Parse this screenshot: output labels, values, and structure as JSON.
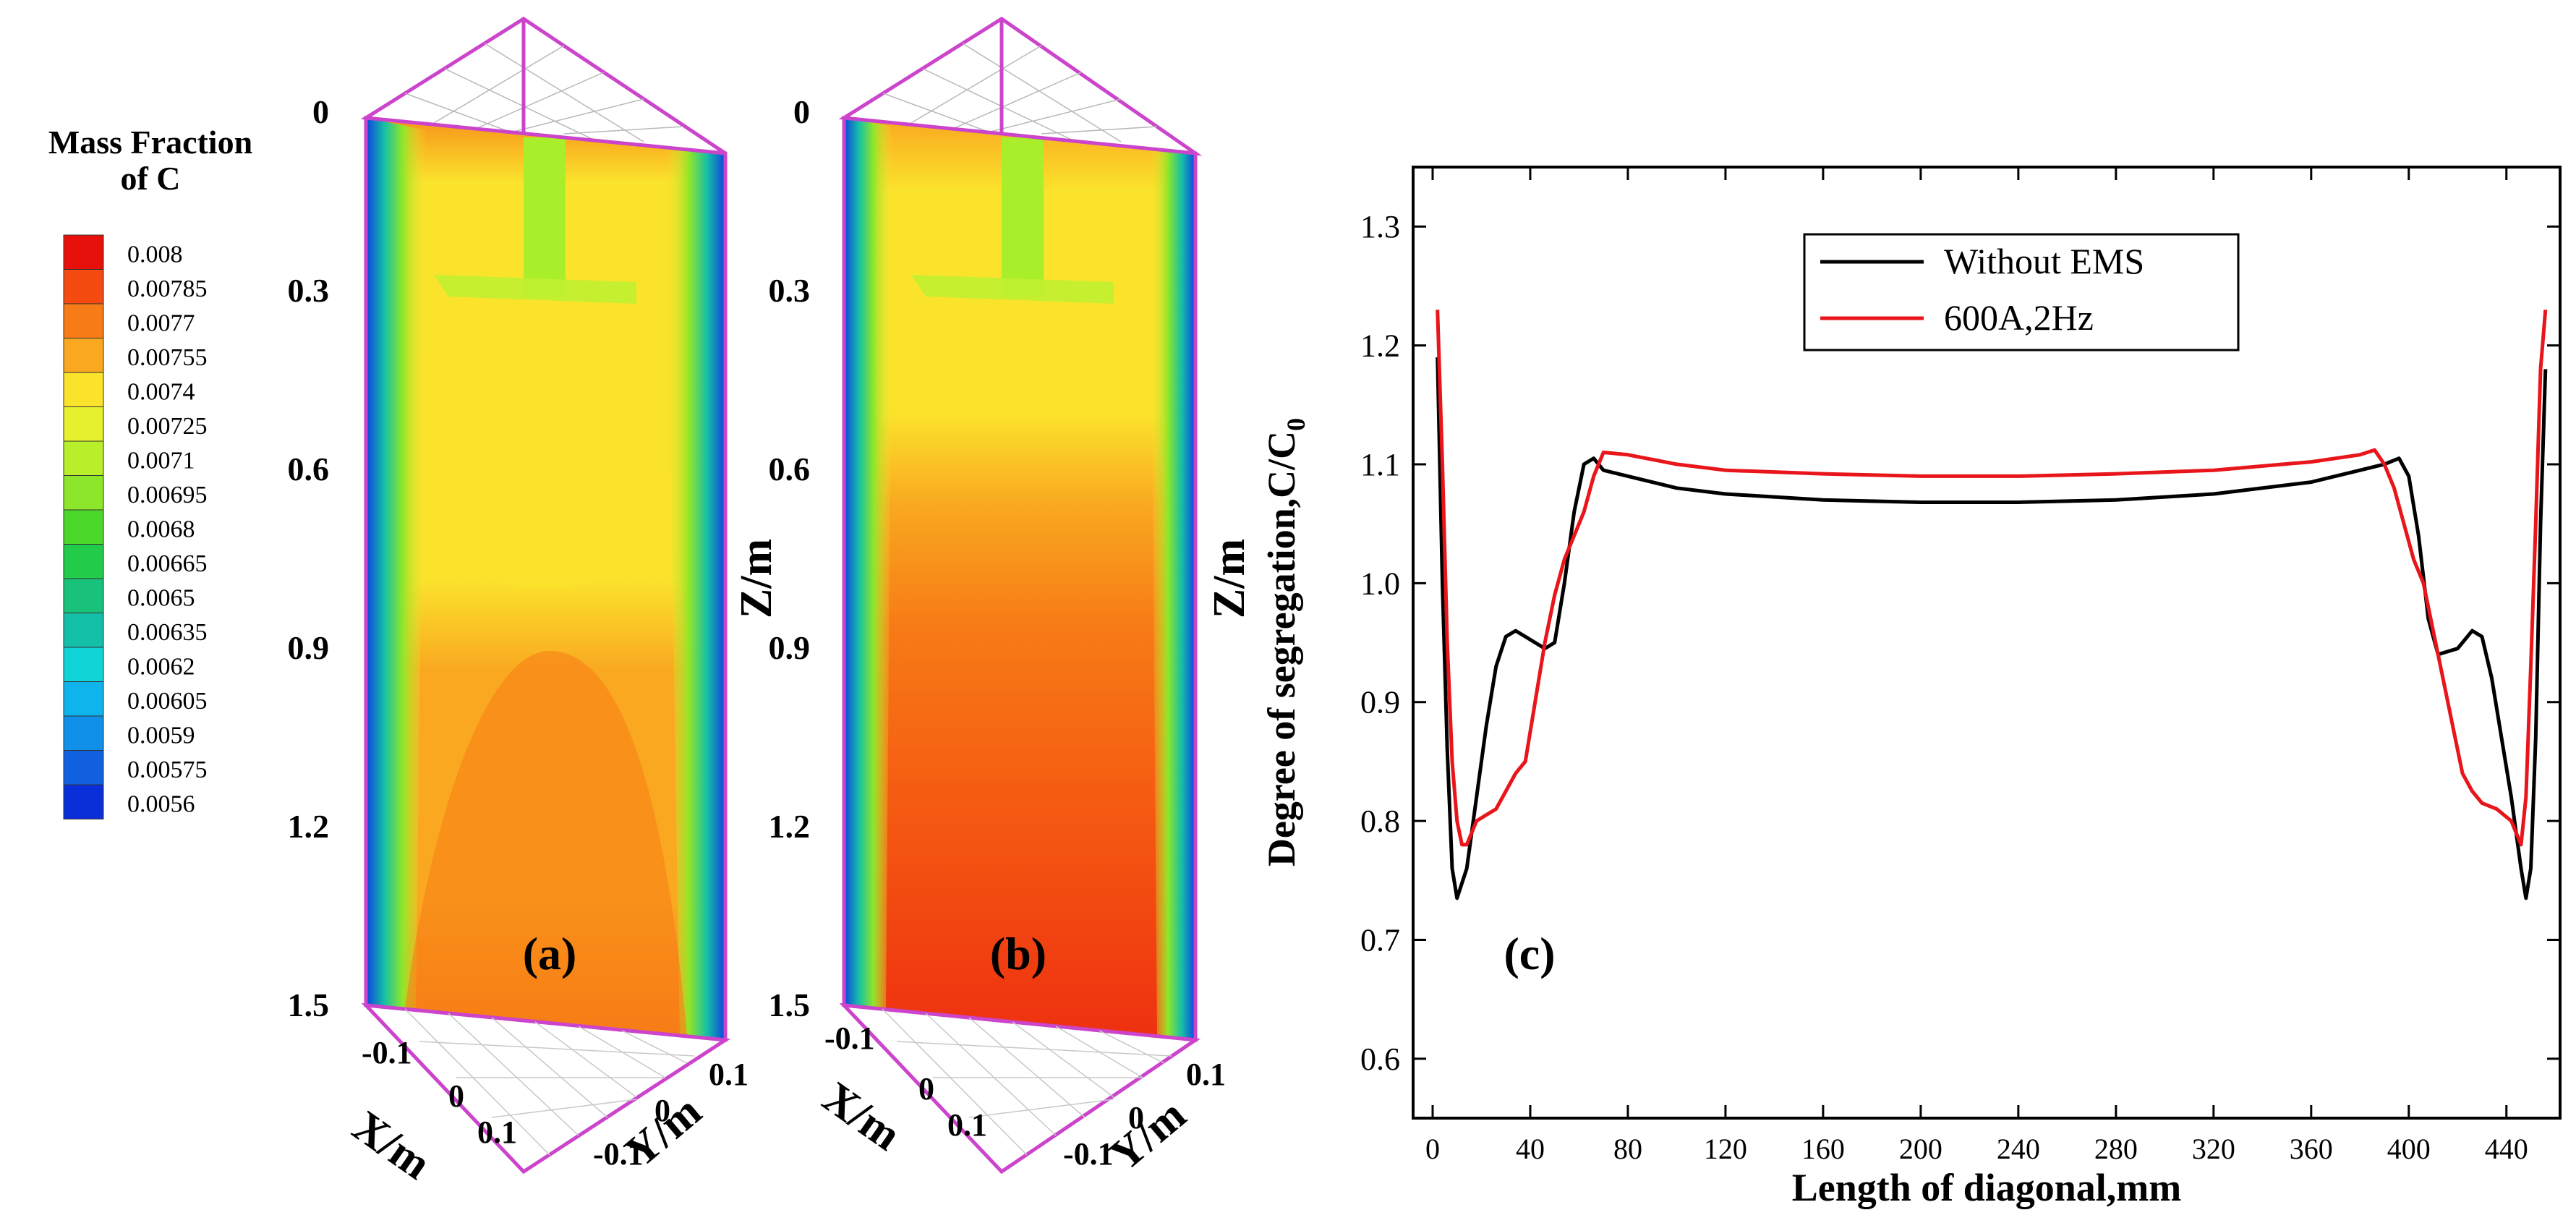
{
  "legend_scale": {
    "title_line1": "Mass Fraction",
    "title_line2": "of C",
    "levels": [
      "0.008",
      "0.00785",
      "0.0077",
      "0.00755",
      "0.0074",
      "0.00725",
      "0.0071",
      "0.00695",
      "0.0068",
      "0.00665",
      "0.0065",
      "0.00635",
      "0.0062",
      "0.00605",
      "0.0059",
      "0.00575",
      "0.0056"
    ],
    "colors": [
      "#e8100a",
      "#f54a10",
      "#f77b16",
      "#f9a820",
      "#fbe32c",
      "#e6f02e",
      "#b8ee2a",
      "#8ee62a",
      "#4cd82a",
      "#22cc4a",
      "#18c27a",
      "#14bfa8",
      "#10d4d8",
      "#10b4ec",
      "#1090e8",
      "#1060e0",
      "#0a2fd8"
    ]
  },
  "panel_a": {
    "label": "(a)",
    "z_axis_label": "Z/m",
    "z_ticks": [
      "0",
      "0.3",
      "0.6",
      "0.9",
      "1.2",
      "1.5"
    ],
    "x_axis_label": "X/m",
    "x_ticks": [
      "-0.1",
      "0",
      "0.1"
    ],
    "y_axis_label": "Y/m",
    "y_ticks": [
      "-0.1",
      "0",
      "0.1"
    ]
  },
  "panel_b": {
    "label": "(b)",
    "z_axis_label": "Z/m",
    "z_ticks": [
      "0",
      "0.3",
      "0.6",
      "0.9",
      "1.2",
      "1.5"
    ],
    "x_axis_label": "X/m",
    "x_ticks": [
      "-0.1",
      "0",
      "0.1"
    ],
    "y_axis_label": "Y/m",
    "y_ticks": [
      "-0.1",
      "0",
      "0.1"
    ]
  },
  "chart_data": {
    "type": "line",
    "panel_label": "(c)",
    "xlabel": "Length of diagonal,mm",
    "ylabel": "Degree of segregation,C/C",
    "ylabel_subscript": "0",
    "xlim": [
      -8,
      462
    ],
    "ylim": [
      0.55,
      1.35
    ],
    "x_ticks": [
      0,
      40,
      80,
      120,
      160,
      200,
      240,
      280,
      320,
      360,
      400,
      440
    ],
    "y_ticks": [
      0.6,
      0.7,
      0.8,
      0.9,
      1.0,
      1.1,
      1.2,
      1.3
    ],
    "y_tick_labels": [
      "0.6",
      "0.7",
      "0.8",
      "0.9",
      "1.0",
      "1.1",
      "1.2",
      "1.3"
    ],
    "legend_position": "top-center",
    "series": [
      {
        "name": "Without EMS",
        "color": "#000000",
        "x": [
          2,
          4,
          6,
          8,
          10,
          14,
          18,
          22,
          26,
          30,
          34,
          38,
          42,
          46,
          50,
          54,
          58,
          62,
          66,
          70,
          80,
          100,
          120,
          160,
          200,
          240,
          280,
          320,
          360,
          380,
          390,
          396,
          400,
          404,
          408,
          412,
          420,
          426,
          430,
          434,
          438,
          442,
          446,
          448,
          450,
          452,
          454,
          456
        ],
        "y": [
          1.19,
          1.0,
          0.86,
          0.76,
          0.735,
          0.76,
          0.82,
          0.88,
          0.93,
          0.955,
          0.96,
          0.955,
          0.95,
          0.945,
          0.95,
          1.0,
          1.06,
          1.1,
          1.105,
          1.095,
          1.09,
          1.08,
          1.075,
          1.07,
          1.068,
          1.068,
          1.07,
          1.075,
          1.085,
          1.095,
          1.1,
          1.105,
          1.09,
          1.04,
          0.97,
          0.94,
          0.945,
          0.96,
          0.955,
          0.92,
          0.87,
          0.82,
          0.76,
          0.735,
          0.76,
          0.87,
          1.05,
          1.18
        ]
      },
      {
        "name": "600A,2Hz",
        "color": "#e8151b",
        "x": [
          2,
          4,
          6,
          8,
          10,
          12,
          14,
          18,
          22,
          26,
          30,
          34,
          38,
          42,
          46,
          50,
          54,
          58,
          62,
          66,
          70,
          80,
          100,
          120,
          160,
          200,
          240,
          280,
          320,
          360,
          380,
          386,
          390,
          394,
          398,
          402,
          406,
          410,
          414,
          418,
          422,
          426,
          430,
          436,
          442,
          446,
          448,
          450,
          452,
          454,
          456
        ],
        "y": [
          1.23,
          1.1,
          0.95,
          0.85,
          0.8,
          0.78,
          0.78,
          0.8,
          0.805,
          0.81,
          0.825,
          0.84,
          0.85,
          0.9,
          0.95,
          0.99,
          1.02,
          1.04,
          1.06,
          1.09,
          1.11,
          1.108,
          1.1,
          1.095,
          1.092,
          1.09,
          1.09,
          1.092,
          1.095,
          1.102,
          1.108,
          1.112,
          1.1,
          1.08,
          1.05,
          1.02,
          1.0,
          0.96,
          0.92,
          0.88,
          0.84,
          0.825,
          0.815,
          0.81,
          0.8,
          0.78,
          0.82,
          0.93,
          1.05,
          1.18,
          1.23
        ]
      }
    ]
  }
}
